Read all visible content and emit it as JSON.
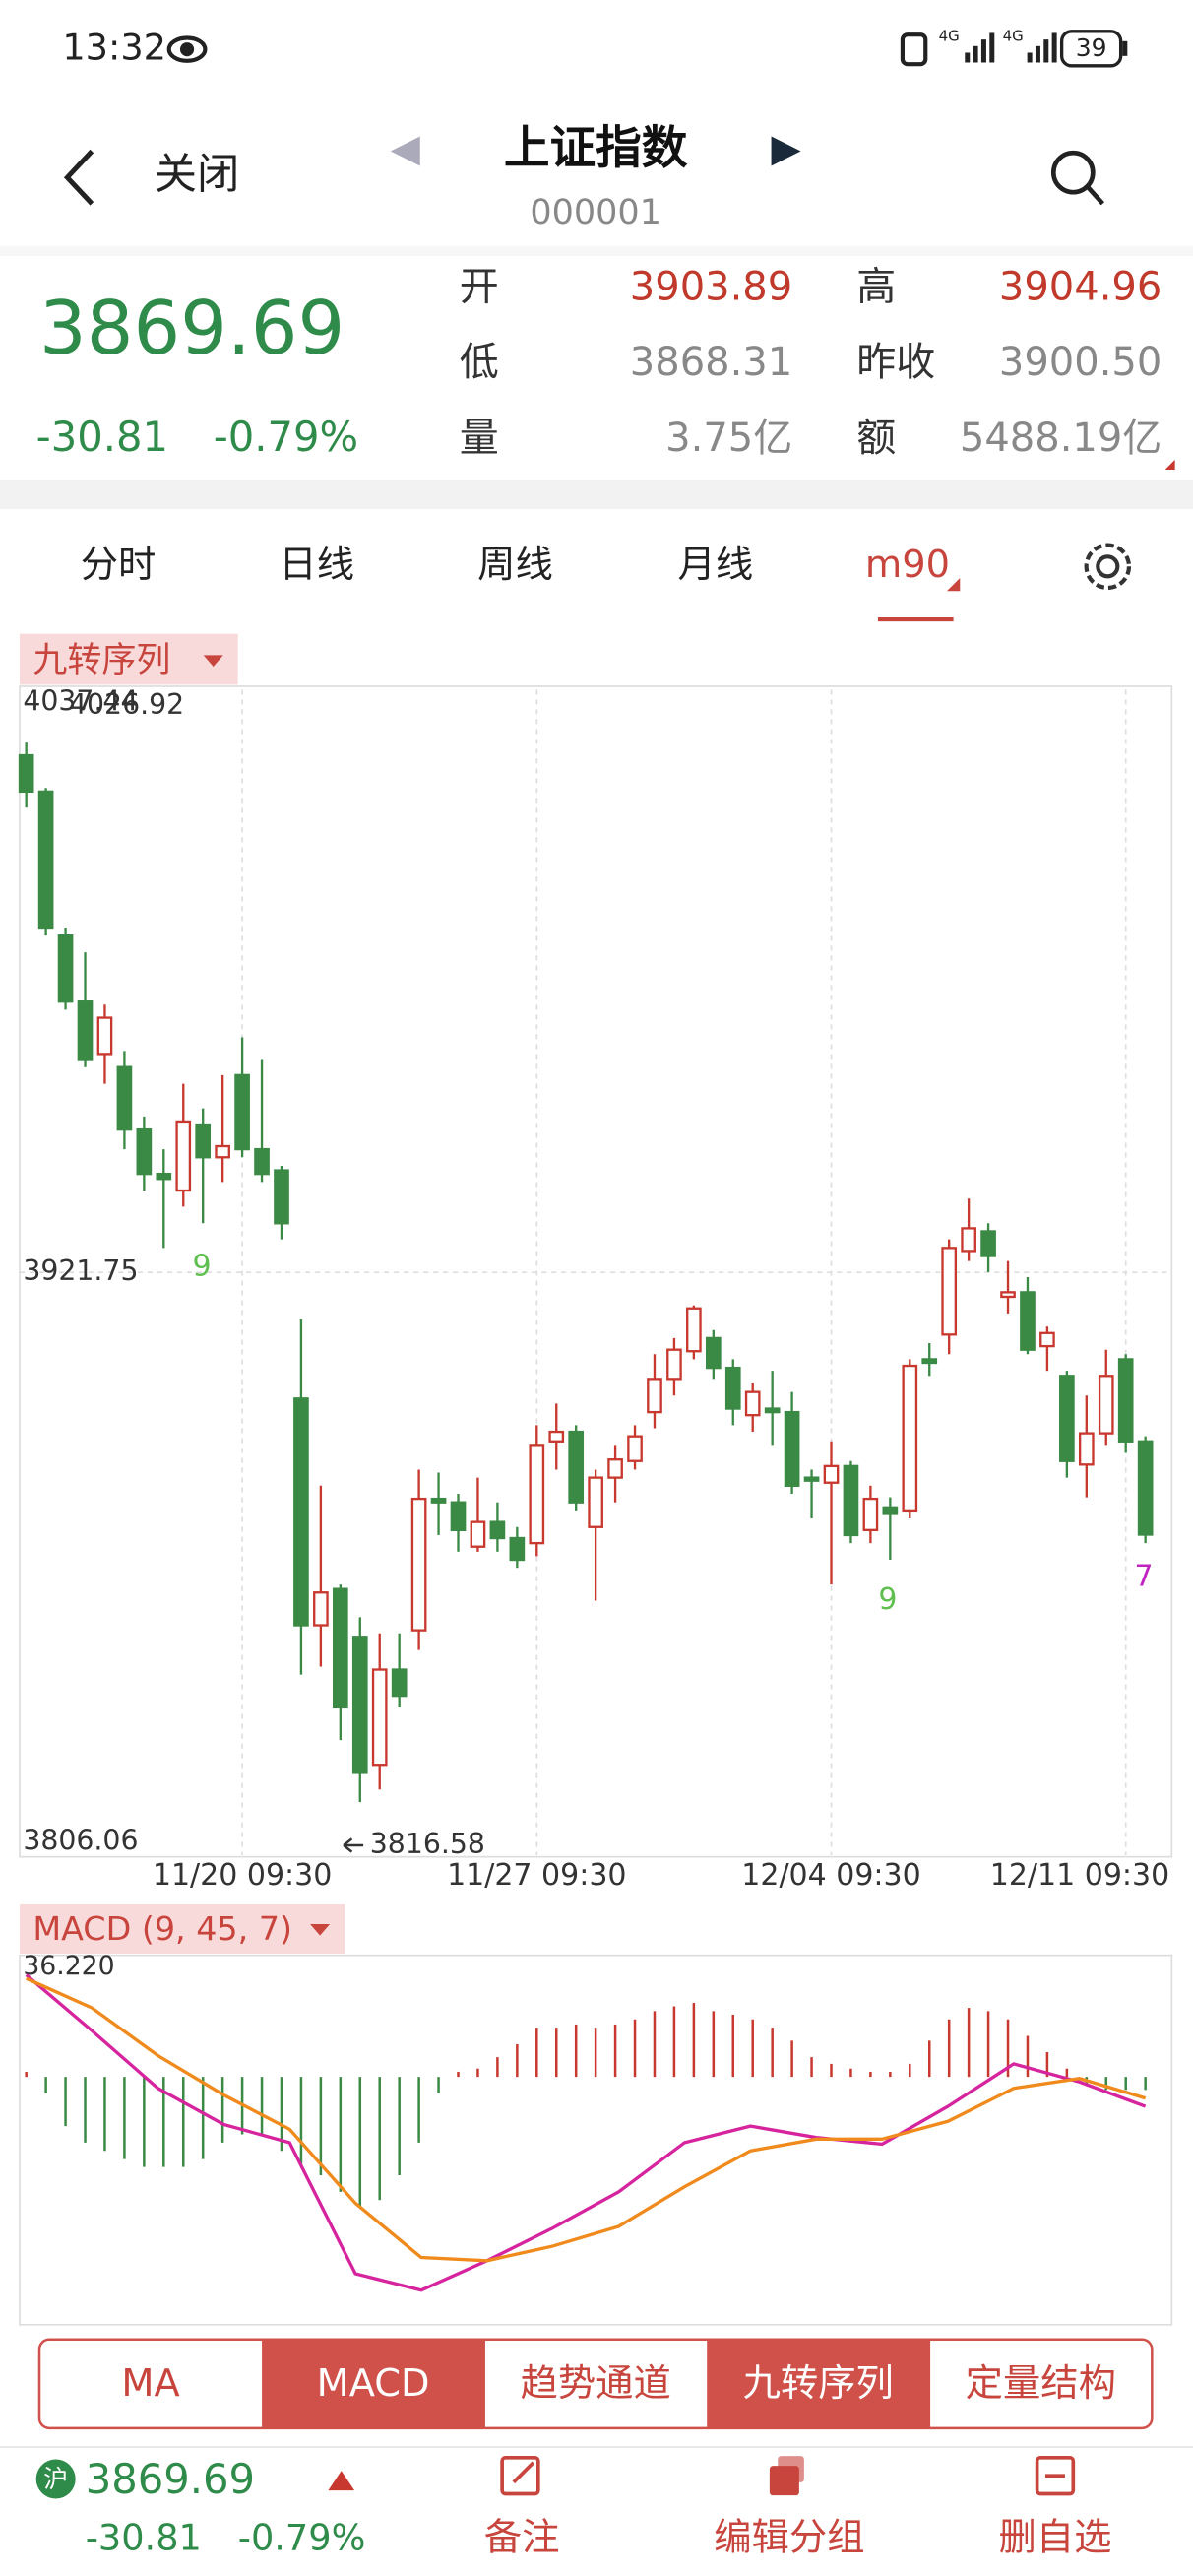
{
  "status_bar": {
    "time": "13:32",
    "battery": "39"
  },
  "header": {
    "back": "关闭",
    "title": "上证指数",
    "code": "000001"
  },
  "quote": {
    "price": "3869.69",
    "change": "-30.81",
    "change_pct": "-0.79%",
    "fields": [
      [
        {
          "label": "开",
          "value": "3903.89"
        },
        {
          "label": "高",
          "value": "3904.96"
        }
      ],
      [
        {
          "label": "低",
          "value": "3868.31"
        },
        {
          "label": "昨收",
          "value": "3900.50"
        }
      ],
      [
        {
          "label": "量",
          "value": "3.75亿"
        },
        {
          "label": "额",
          "value": "5488.19亿"
        }
      ]
    ]
  },
  "tabs": {
    "items": [
      "分时",
      "日线",
      "周线",
      "月线",
      "m90"
    ],
    "active": 4
  },
  "main_indicator": "九转序列",
  "signals": [
    "9",
    "9",
    "7"
  ],
  "chart_data": [
    {
      "type": "candlestick",
      "up_color": "#c8382e",
      "down_color": "#3a8a45",
      "ylim": [
        3806.06,
        4037.44
      ],
      "yticks": [
        4037.44,
        3921.75,
        3806.06
      ],
      "grid": true,
      "categories": [
        null,
        null,
        null,
        null,
        null,
        null,
        null,
        null,
        null,
        null,
        null,
        "11/20 09:30",
        null,
        null,
        null,
        null,
        null,
        null,
        null,
        null,
        null,
        null,
        null,
        null,
        null,
        null,
        "11/27 09:30",
        null,
        null,
        null,
        null,
        null,
        null,
        null,
        null,
        null,
        null,
        null,
        null,
        null,
        null,
        "12/04 09:30",
        null,
        null,
        null,
        null,
        null,
        null,
        null,
        null,
        null,
        null,
        null,
        null,
        null,
        null,
        "12/11 09:30",
        null
      ],
      "candles": [
        [
          4024.4,
          4026.92,
          4014.0,
          4017.2
        ],
        [
          4017.2,
          4017.9,
          3988.6,
          3990.2
        ],
        [
          3988.6,
          3990.2,
          3973.9,
          3975.5
        ],
        [
          3975.5,
          3985.3,
          3962.5,
          3964.1
        ],
        [
          3965.1,
          3974.9,
          3959.2,
          3972.3
        ],
        [
          3962.5,
          3965.7,
          3946.2,
          3950.1
        ],
        [
          3950.1,
          3952.7,
          3938.0,
          3941.3
        ],
        [
          3941.3,
          3946.2,
          3926.6,
          3940.3
        ],
        [
          3938.0,
          3959.2,
          3934.8,
          3951.7
        ],
        [
          3951.1,
          3954.3,
          3931.5,
          3944.6
        ],
        [
          3944.6,
          3960.9,
          3939.7,
          3946.8
        ],
        [
          3960.9,
          3968.4,
          3944.6,
          3946.2
        ],
        [
          3946.2,
          3964.1,
          3939.7,
          3941.3
        ],
        [
          3942.0,
          3942.9,
          3928.3,
          3931.5
        ],
        [
          3896.7,
          3912.6,
          3841.9,
          3851.7
        ],
        [
          3851.7,
          3879.4,
          3843.5,
          3858.2
        ],
        [
          3858.9,
          3859.8,
          3828.9,
          3835.4
        ],
        [
          3849.4,
          3853.3,
          3816.58,
          3822.4
        ],
        [
          3824.0,
          3850.1,
          3819.1,
          3842.9
        ],
        [
          3842.9,
          3850.1,
          3835.4,
          3837.7
        ],
        [
          3850.7,
          3882.6,
          3846.8,
          3876.8
        ],
        [
          3876.8,
          3882.0,
          3869.6,
          3876.1
        ],
        [
          3876.1,
          3877.8,
          3866.3,
          3870.6
        ],
        [
          3867.3,
          3881.0,
          3866.3,
          3872.2
        ],
        [
          3872.2,
          3876.1,
          3866.3,
          3869.0
        ],
        [
          3869.0,
          3871.2,
          3863.1,
          3864.7
        ],
        [
          3868.0,
          3891.4,
          3865.4,
          3887.5
        ],
        [
          3888.2,
          3895.7,
          3882.6,
          3890.1
        ],
        [
          3890.1,
          3891.4,
          3874.5,
          3876.1
        ],
        [
          3871.2,
          3882.6,
          3856.6,
          3881.0
        ],
        [
          3881.0,
          3887.5,
          3876.1,
          3884.6
        ],
        [
          3884.3,
          3891.4,
          3882.6,
          3889.2
        ],
        [
          3894.0,
          3905.5,
          3890.8,
          3900.6
        ],
        [
          3900.6,
          3908.7,
          3897.3,
          3906.4
        ],
        [
          3906.1,
          3915.2,
          3904.5,
          3914.6
        ],
        [
          3908.7,
          3910.3,
          3900.6,
          3902.8
        ],
        [
          3902.8,
          3904.5,
          3891.4,
          3894.7
        ],
        [
          3893.4,
          3899.9,
          3890.1,
          3898.0
        ],
        [
          3894.7,
          3902.2,
          3887.5,
          3894.0
        ],
        [
          3894.0,
          3898.0,
          3877.8,
          3879.4
        ],
        [
          3881.0,
          3882.6,
          3872.9,
          3880.4
        ],
        [
          3880.0,
          3888.2,
          3859.8,
          3883.3
        ],
        [
          3883.3,
          3884.3,
          3868.0,
          3869.6
        ],
        [
          3870.6,
          3879.4,
          3868.0,
          3876.8
        ],
        [
          3875.1,
          3877.1,
          3864.7,
          3873.8
        ],
        [
          3874.5,
          3904.5,
          3872.9,
          3903.2
        ],
        [
          3904.5,
          3907.7,
          3901.2,
          3903.8
        ],
        [
          3909.4,
          3928.3,
          3905.5,
          3926.6
        ],
        [
          3926.0,
          3936.4,
          3924.0,
          3930.5
        ],
        [
          3929.9,
          3931.5,
          3921.8,
          3925.0
        ],
        [
          3916.9,
          3924.0,
          3913.6,
          3917.8
        ],
        [
          3917.8,
          3920.8,
          3905.5,
          3906.4
        ],
        [
          3907.1,
          3911.0,
          3902.2,
          3909.7
        ],
        [
          3901.2,
          3902.2,
          3881.0,
          3884.3
        ],
        [
          3883.6,
          3897.3,
          3877.1,
          3889.8
        ],
        [
          3889.8,
          3906.4,
          3887.5,
          3901.2
        ],
        [
          3904.5,
          3905.5,
          3885.9,
          3888.2
        ],
        [
          3888.2,
          3889.2,
          3868.0,
          3869.69
        ]
      ]
    },
    {
      "type": "macd",
      "title": "MACD (9, 45, 7)",
      "ylim": [
        -76.0,
        36.22
      ],
      "yticks": [
        {
          "value": 36.22,
          "label": "36.220"
        }
      ],
      "up_color": "#c8382e",
      "down_color": "#3a8a45",
      "histogram": [
        1.6,
        -5.2,
        -15.5,
        -20.7,
        -23.3,
        -25.9,
        -28.4,
        -28.4,
        -28.4,
        -25.9,
        -20.7,
        -18.1,
        -18.1,
        -23.3,
        -28.4,
        -31.0,
        -36.2,
        -41.4,
        -38.8,
        -31.0,
        -20.7,
        -5.2,
        1.6,
        2.6,
        6.2,
        10.3,
        15.5,
        15.5,
        16.5,
        15.5,
        16.5,
        18.1,
        20.7,
        22.2,
        23.3,
        20.7,
        19.6,
        18.1,
        15.5,
        11.4,
        6.2,
        4.1,
        2.6,
        1.6,
        1.6,
        4.1,
        11.4,
        18.1,
        21.7,
        20.7,
        18.1,
        12.9,
        7.8,
        2.6,
        -2.6,
        -4.1,
        -4.1,
        -4.1
      ],
      "lines": [
        {
          "color": "#d6249f",
          "values": [
            32.1,
            14.5,
            -3.6,
            -15.0,
            -20.7,
            -62.0,
            -67.2,
            -57.9,
            -47.6,
            -36.2,
            -20.7,
            -15.5,
            -19.1,
            -21.2,
            -9.3,
            4.1,
            -1.6,
            -9.3
          ]
        },
        {
          "color": "#f08a1c",
          "values": [
            31.0,
            21.7,
            6.7,
            -5.7,
            -16.5,
            -39.8,
            -56.9,
            -57.9,
            -53.3,
            -47.1,
            -34.6,
            -23.3,
            -19.6,
            -19.6,
            -14.0,
            -3.6,
            -0.5,
            -6.7
          ]
        }
      ]
    }
  ],
  "indicator_buttons": {
    "items": [
      "MA",
      "MACD",
      "趋势通道",
      "九转序列",
      "定量结构"
    ],
    "active": [
      1,
      3
    ]
  },
  "footer": {
    "badge": "沪",
    "price": "3869.69",
    "change": "-30.81",
    "change_pct": "-0.79%",
    "actions": [
      "备注",
      "编辑分组",
      "删自选"
    ]
  }
}
